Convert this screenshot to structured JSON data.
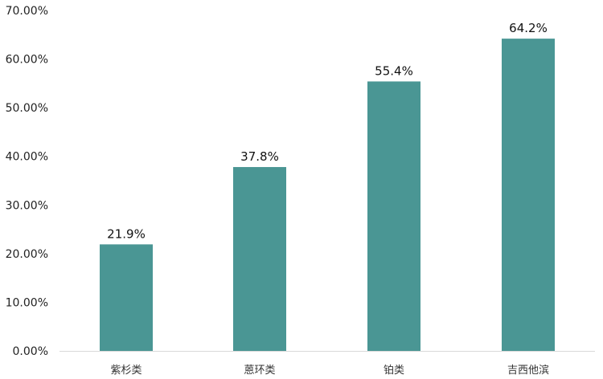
{
  "chart_data": {
    "type": "bar",
    "title": "",
    "xlabel": "",
    "ylabel": "",
    "categories": [
      "紫杉类",
      "蒽环类",
      "铂类",
      "吉西他滨"
    ],
    "values": [
      21.9,
      37.8,
      55.4,
      64.2
    ],
    "data_labels": [
      "21.9%",
      "37.8%",
      "55.4%",
      "64.2%"
    ],
    "ylim": [
      0,
      70
    ],
    "yticks": [
      "0.00%",
      "10.00%",
      "20.00%",
      "30.00%",
      "40.00%",
      "50.00%",
      "60.00%",
      "70.00%"
    ],
    "grid": false,
    "legend": "none",
    "bar_color": "#4a9694"
  }
}
